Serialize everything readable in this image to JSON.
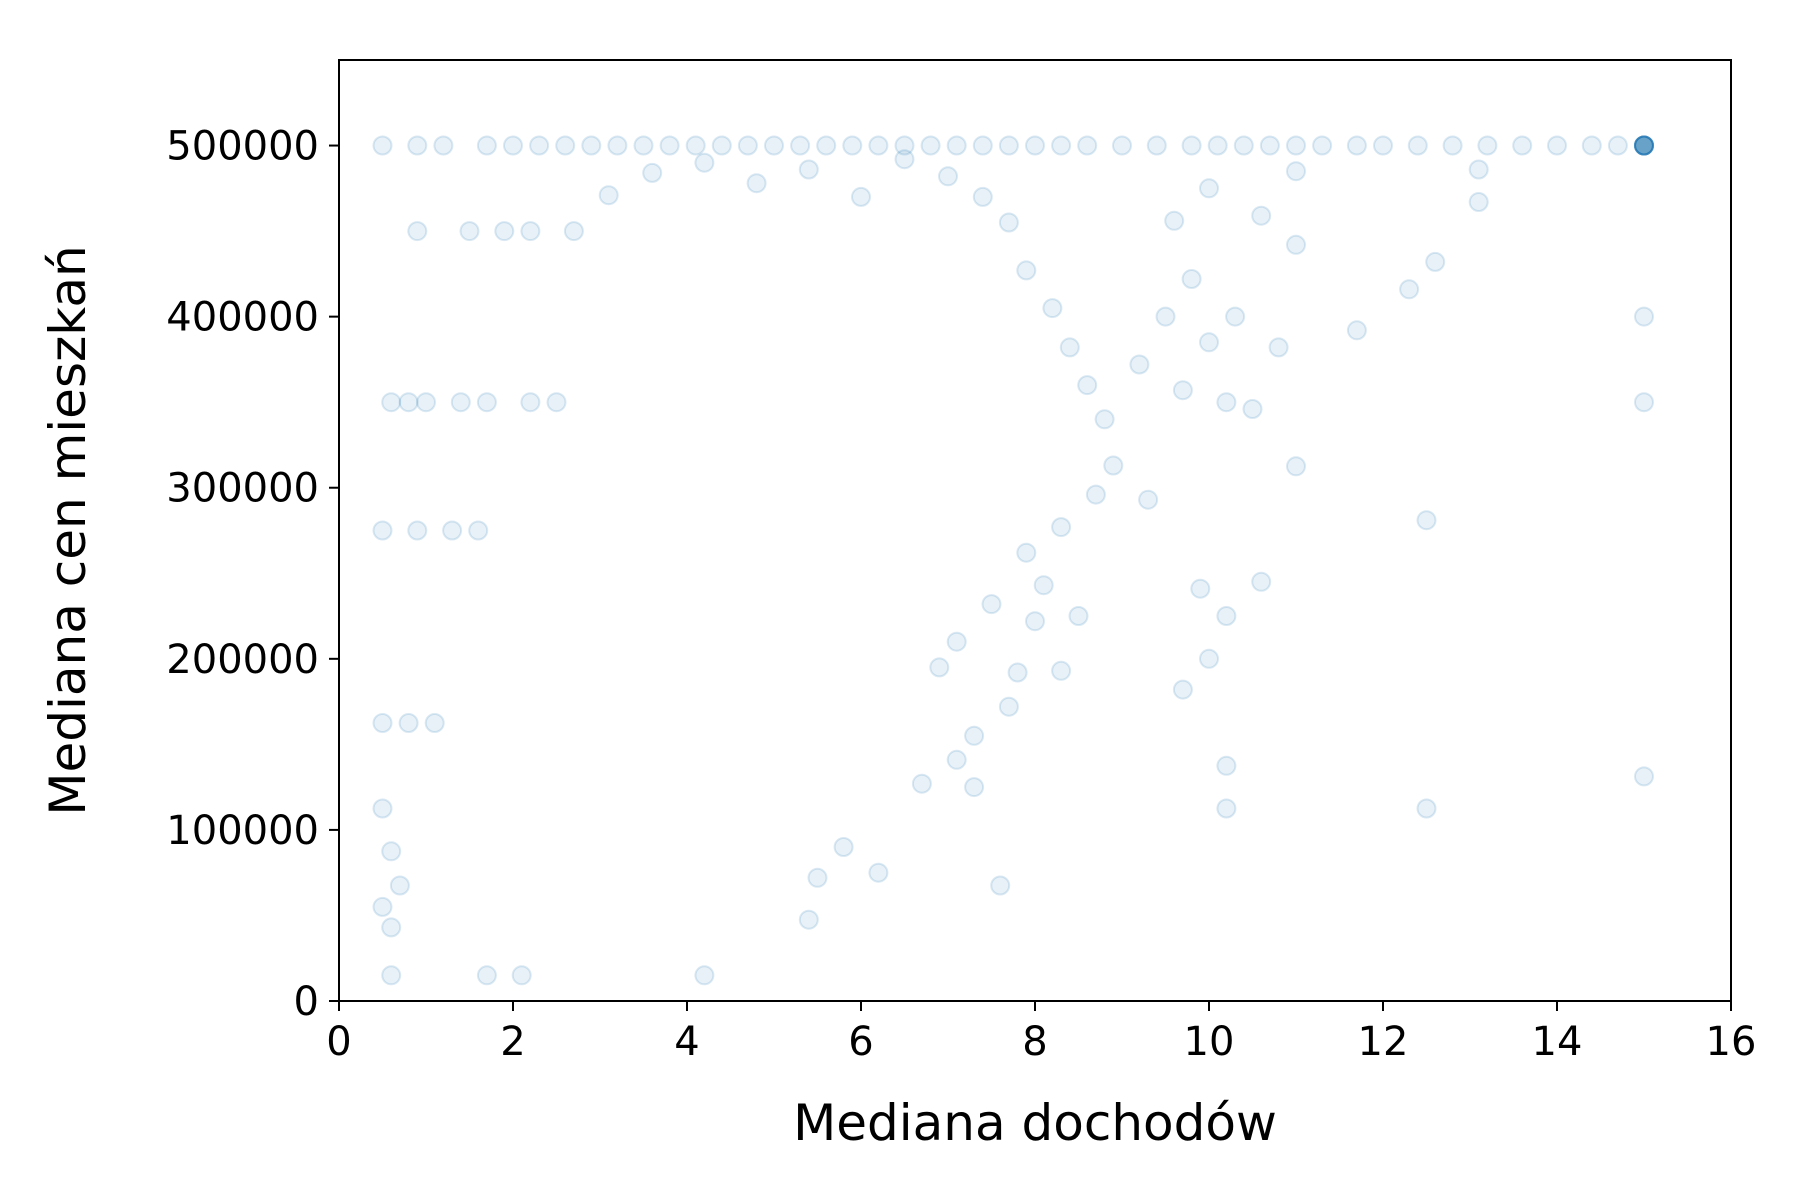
{
  "chart_data": {
    "type": "scatter",
    "title": "",
    "xlabel": "Mediana dochodów",
    "ylabel": "Mediana cen mieszkań",
    "xlim": [
      0,
      16
    ],
    "ylim": [
      0,
      550000
    ],
    "xticks": [
      0,
      2,
      4,
      6,
      8,
      10,
      12,
      14,
      16
    ],
    "yticks": [
      0,
      100000,
      200000,
      300000,
      400000,
      500000
    ],
    "xtick_labels": [
      "0",
      "2",
      "4",
      "6",
      "8",
      "10",
      "12",
      "14",
      "16"
    ],
    "ytick_labels": [
      "0",
      "100000",
      "200000",
      "300000",
      "400000",
      "500000"
    ],
    "grid": false,
    "legend": "none",
    "marker_color": "#1f77b4",
    "marker_alpha": 0.1,
    "series": [
      {
        "points": [
          [
            15.0,
            500001
          ],
          [
            15.0,
            500001
          ],
          [
            15.0,
            500001
          ],
          [
            15.0,
            500001
          ],
          [
            15.0,
            500001
          ],
          [
            15.0,
            500001
          ],
          [
            15.0,
            500001
          ],
          [
            15.0,
            500001
          ],
          [
            15.0,
            500001
          ],
          [
            15.0,
            500001
          ],
          [
            15.0,
            400000
          ],
          [
            15.0,
            350000
          ],
          [
            15.0,
            131300
          ],
          [
            0.5,
            500001
          ],
          [
            0.9,
            500001
          ],
          [
            1.2,
            500001
          ],
          [
            1.7,
            500001
          ],
          [
            2.0,
            500001
          ],
          [
            2.3,
            500001
          ],
          [
            2.6,
            500001
          ],
          [
            2.9,
            500001
          ],
          [
            3.2,
            500001
          ],
          [
            3.5,
            500001
          ],
          [
            3.8,
            500001
          ],
          [
            4.1,
            500001
          ],
          [
            4.4,
            500001
          ],
          [
            4.7,
            500001
          ],
          [
            5.0,
            500001
          ],
          [
            5.3,
            500001
          ],
          [
            5.6,
            500001
          ],
          [
            5.9,
            500001
          ],
          [
            6.2,
            500001
          ],
          [
            6.5,
            500001
          ],
          [
            6.8,
            500001
          ],
          [
            7.1,
            500001
          ],
          [
            7.4,
            500001
          ],
          [
            7.7,
            500001
          ],
          [
            8.0,
            500001
          ],
          [
            8.3,
            500001
          ],
          [
            8.6,
            500001
          ],
          [
            9.0,
            500001
          ],
          [
            9.4,
            500001
          ],
          [
            9.8,
            500001
          ],
          [
            10.1,
            500001
          ],
          [
            10.4,
            500001
          ],
          [
            10.7,
            500001
          ],
          [
            11.0,
            500001
          ],
          [
            11.3,
            500001
          ],
          [
            11.7,
            500001
          ],
          [
            12.0,
            500001
          ],
          [
            12.4,
            500001
          ],
          [
            12.8,
            500001
          ],
          [
            13.2,
            500001
          ],
          [
            13.6,
            500001
          ],
          [
            14.0,
            500001
          ],
          [
            14.4,
            500001
          ],
          [
            14.7,
            500001
          ],
          [
            0.9,
            450000
          ],
          [
            1.5,
            450000
          ],
          [
            1.9,
            450000
          ],
          [
            2.2,
            450000
          ],
          [
            2.7,
            450000
          ],
          [
            0.6,
            350000
          ],
          [
            0.8,
            350000
          ],
          [
            1.0,
            350000
          ],
          [
            1.4,
            350000
          ],
          [
            1.7,
            350000
          ],
          [
            2.2,
            350000
          ],
          [
            2.5,
            350000
          ],
          [
            0.5,
            275000
          ],
          [
            0.9,
            275000
          ],
          [
            1.3,
            275000
          ],
          [
            1.6,
            275000
          ],
          [
            0.5,
            162500
          ],
          [
            0.8,
            162500
          ],
          [
            1.1,
            162500
          ],
          [
            0.5,
            112500
          ],
          [
            0.6,
            87500
          ],
          [
            0.7,
            67500
          ],
          [
            0.5,
            55000
          ],
          [
            0.6,
            43000
          ],
          [
            0.6,
            14999
          ],
          [
            1.7,
            14999
          ],
          [
            2.1,
            14999
          ],
          [
            4.2,
            14999
          ],
          [
            5.4,
            47500
          ],
          [
            7.6,
            67500
          ],
          [
            9.7,
            182000
          ],
          [
            10.0,
            200000
          ],
          [
            10.2,
            137500
          ],
          [
            10.2,
            112500
          ],
          [
            12.5,
            112500
          ],
          [
            12.5,
            281000
          ],
          [
            9.3,
            293000
          ],
          [
            10.2,
            225000
          ],
          [
            10.6,
            245000
          ],
          [
            9.9,
            241000
          ],
          [
            11.0,
            312500
          ],
          [
            10.2,
            350000
          ],
          [
            10.5,
            346000
          ],
          [
            11.7,
            392000
          ],
          [
            12.3,
            416000
          ],
          [
            12.6,
            432000
          ],
          [
            10.8,
            382000
          ],
          [
            10.0,
            385000
          ],
          [
            10.3,
            400000
          ],
          [
            13.1,
            467000
          ],
          [
            13.1,
            486000
          ],
          [
            11.0,
            442000
          ],
          [
            10.6,
            459000
          ],
          [
            10.0,
            475000
          ],
          [
            11.0,
            485000
          ],
          [
            9.6,
            456000
          ],
          [
            9.8,
            422000
          ],
          [
            9.5,
            400000
          ],
          [
            9.2,
            372000
          ],
          [
            9.7,
            357000
          ],
          [
            8.9,
            313000
          ],
          [
            8.3,
            277000
          ],
          [
            8.5,
            225000
          ],
          [
            8.1,
            243000
          ],
          [
            8.0,
            222000
          ],
          [
            7.3,
            125000
          ],
          [
            7.1,
            141000
          ],
          [
            7.3,
            155000
          ],
          [
            6.7,
            127000
          ],
          [
            7.8,
            192000
          ],
          [
            8.3,
            193000
          ],
          [
            7.7,
            172000
          ],
          [
            6.2,
            75000
          ],
          [
            5.8,
            90000
          ],
          [
            5.5,
            72000
          ],
          [
            7.1,
            210000
          ],
          [
            6.9,
            195000
          ],
          [
            7.5,
            232000
          ],
          [
            7.9,
            262000
          ],
          [
            8.7,
            296000
          ],
          [
            8.8,
            340000
          ],
          [
            8.6,
            360000
          ],
          [
            8.4,
            382000
          ],
          [
            8.2,
            405000
          ],
          [
            7.9,
            427000
          ],
          [
            7.7,
            455000
          ],
          [
            7.4,
            470000
          ],
          [
            7.0,
            482000
          ],
          [
            6.5,
            492000
          ],
          [
            6.0,
            470000
          ],
          [
            5.4,
            486000
          ],
          [
            4.8,
            478000
          ],
          [
            4.2,
            490000
          ],
          [
            3.6,
            484000
          ],
          [
            3.1,
            471000
          ]
        ]
      }
    ]
  }
}
